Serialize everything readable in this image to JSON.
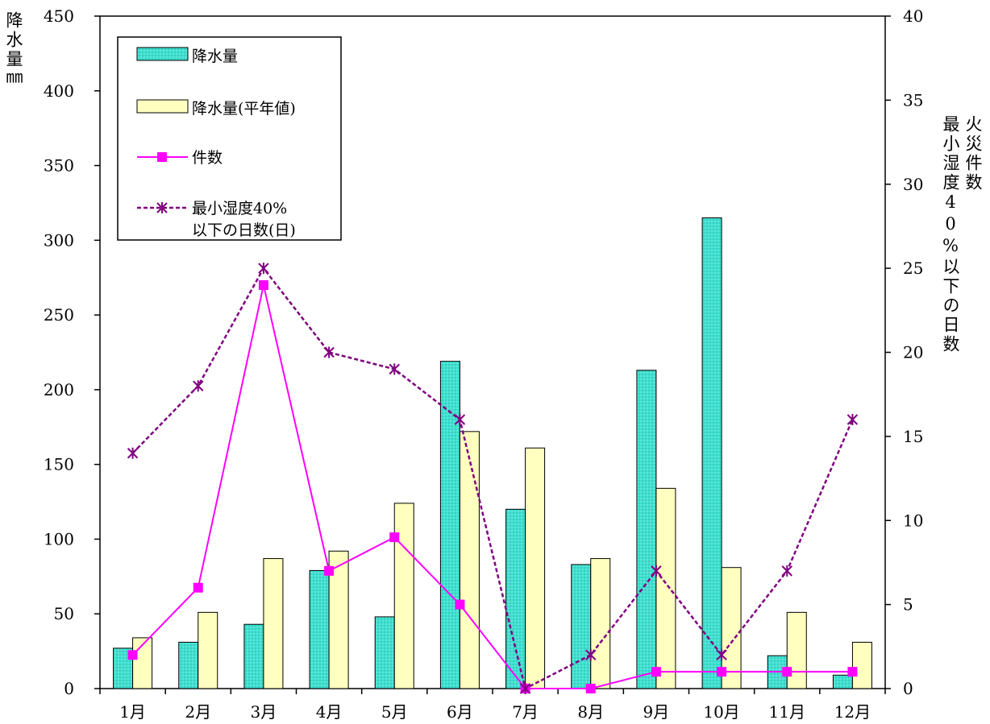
{
  "chart_data": {
    "type": "bar",
    "categories": [
      "1月",
      "2月",
      "3月",
      "4月",
      "5月",
      "6月",
      "7月",
      "8月",
      "9月",
      "10月",
      "11月",
      "12月"
    ],
    "y_left": {
      "label": "降水量㎜",
      "ticks": [
        0,
        50,
        100,
        150,
        200,
        250,
        300,
        350,
        400,
        450
      ],
      "ylim": [
        0,
        450
      ]
    },
    "y_right": {
      "label_1": "火災件数",
      "label_2": "最小湿度40%以下の日数",
      "ticks": [
        0,
        5,
        10,
        15,
        20,
        25,
        30,
        35,
        40
      ],
      "ylim": [
        0,
        40
      ]
    },
    "series": [
      {
        "name": "降水量",
        "type": "bar",
        "axis": "left",
        "color": "#40E0D0",
        "values": [
          27,
          31,
          43,
          79,
          48,
          219,
          120,
          83,
          213,
          315,
          22,
          9
        ]
      },
      {
        "name": "降水量(平年値)",
        "type": "bar",
        "axis": "left",
        "color": "#FFFFC0",
        "values": [
          34,
          51,
          87,
          92,
          124,
          172,
          161,
          87,
          134,
          81,
          51,
          31
        ]
      },
      {
        "name": "件数",
        "type": "line",
        "axis": "right",
        "color": "#FF00FF",
        "marker": "square",
        "values": [
          2,
          6,
          24,
          7,
          9,
          5,
          0,
          0,
          1,
          1,
          1,
          1
        ]
      },
      {
        "name": "最小湿度40%",
        "name_line2": "以下の日数(日)",
        "type": "line",
        "axis": "right",
        "color": "#800080",
        "marker": "star",
        "dashed": true,
        "values": [
          14,
          18,
          25,
          20,
          19,
          16,
          0,
          2,
          7,
          2,
          7,
          16
        ]
      }
    ],
    "legend_position": "top-left",
    "grid": false
  }
}
